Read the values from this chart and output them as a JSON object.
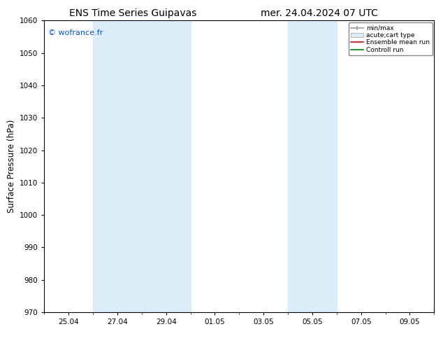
{
  "title": "ENS Time Series Guipavas",
  "title2": "mer. 24.04.2024 07 UTC",
  "ylabel": "Surface Pressure (hPa)",
  "ylim": [
    970,
    1060
  ],
  "yticks": [
    970,
    980,
    990,
    1000,
    1010,
    1020,
    1030,
    1040,
    1050,
    1060
  ],
  "xtick_labels": [
    "25.04",
    "27.04",
    "29.04",
    "01.05",
    "03.05",
    "05.05",
    "07.05",
    "09.05"
  ],
  "xtick_positions": [
    1,
    3,
    5,
    7,
    9,
    11,
    13,
    15
  ],
  "xlim": [
    0,
    16
  ],
  "background_color": "#ffffff",
  "plot_bg_color": "#ffffff",
  "shaded_regions": [
    {
      "x_start": 2,
      "x_end": 4,
      "color": "#dbeaf7"
    },
    {
      "x_start": 4,
      "x_end": 6,
      "color": "#dbeaf7"
    },
    {
      "x_start": 10,
      "x_end": 12,
      "color": "#dbeaf7"
    }
  ],
  "watermark_text": "© wofrance.fr",
  "watermark_color": "#0055cc",
  "legend_items": [
    {
      "label": "min/max",
      "type": "errorbar",
      "color": "#aaaaaa"
    },
    {
      "label": "acute;cart type",
      "type": "box",
      "color": "#dbeaf7"
    },
    {
      "label": "Ensemble mean run",
      "type": "line",
      "color": "#ff0000"
    },
    {
      "label": "Controll run",
      "type": "line",
      "color": "#008000"
    }
  ],
  "title_fontsize": 10,
  "tick_fontsize": 7.5,
  "ylabel_fontsize": 8.5
}
